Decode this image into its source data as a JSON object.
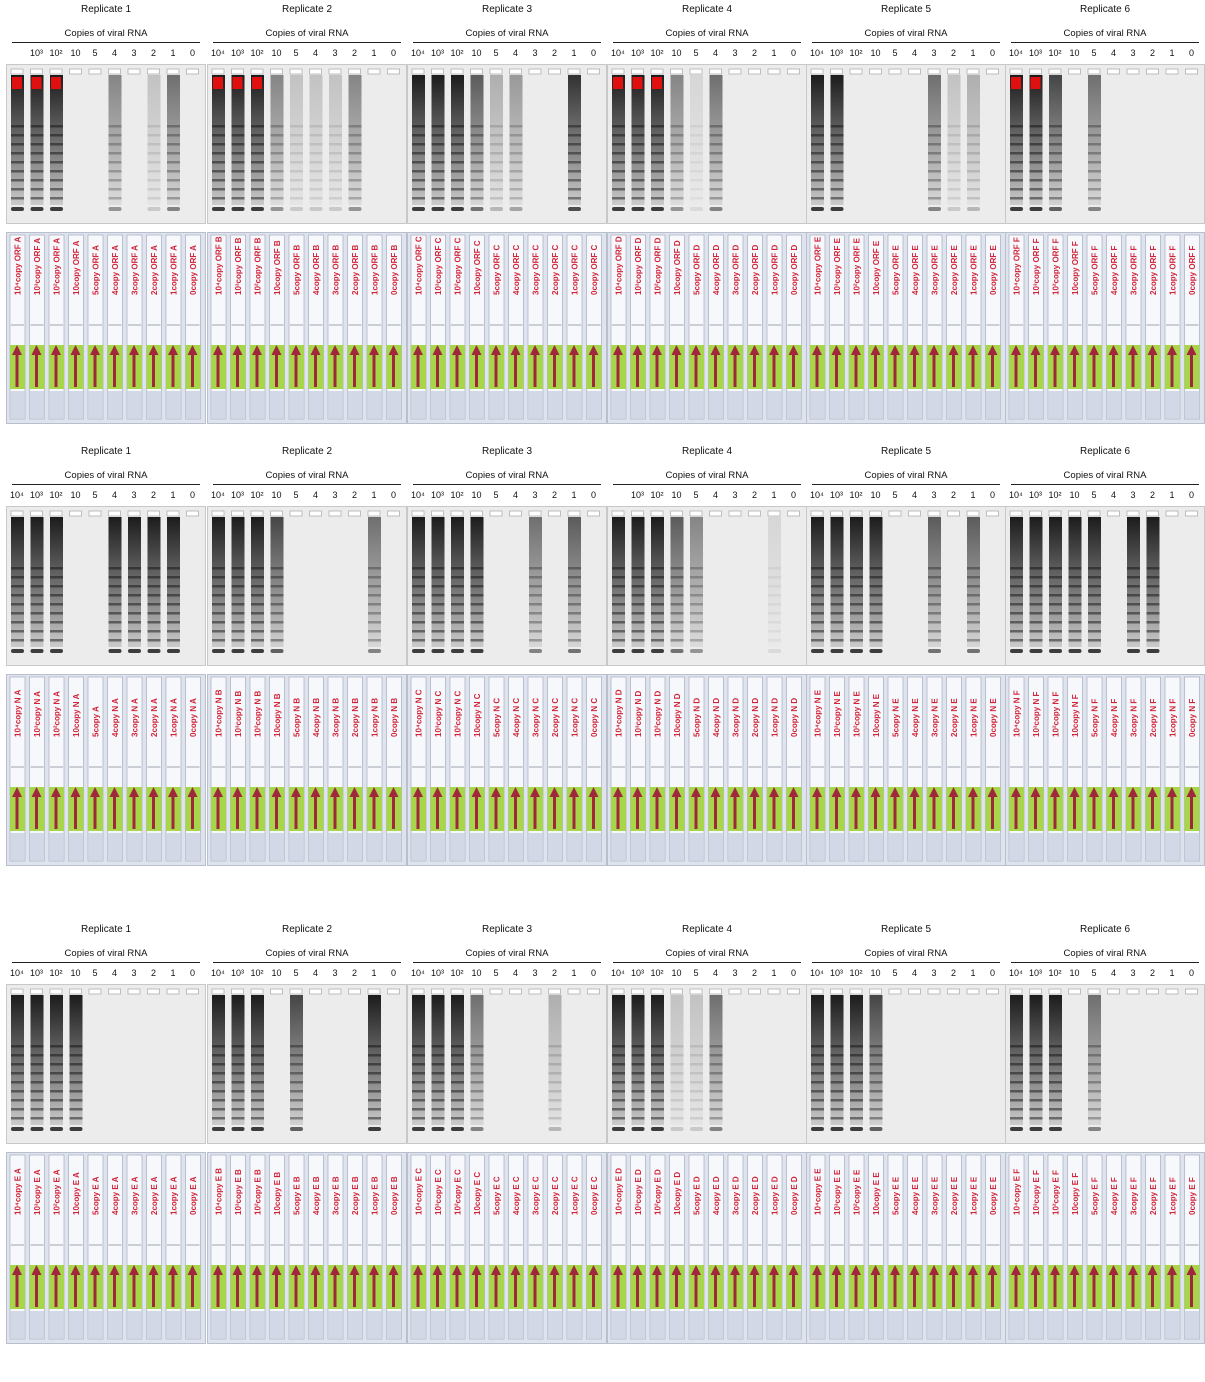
{
  "rows": [
    {
      "replicates": [
        {
          "title": "Replicate 1",
          "copies_label": "Copies of viral RNA",
          "lanes": [
            "",
            "10³",
            "10²",
            "10",
            "5",
            "4",
            "3",
            "2",
            "1",
            "0"
          ],
          "gel_signal": [
            1,
            1,
            1,
            0,
            0,
            0.5,
            0,
            0.2,
            0.6,
            0
          ],
          "strip_labels": [
            "10⁴copy ORF A",
            "10³copy ORF A",
            "10²copy ORF A",
            "10copy ORF A",
            "5copy ORF A",
            "4copy ORF A",
            "3copy ORF A",
            "2copy ORF A",
            "1copy ORF A",
            "0copy ORF A"
          ]
        },
        {
          "title": "Replicate 2",
          "copies_label": "Copies of viral RNA",
          "lanes": [
            "10⁴",
            "10³",
            "10²",
            "10",
            "5",
            "4",
            "3",
            "2",
            "1",
            "0"
          ],
          "gel_signal": [
            1,
            1,
            1,
            0.5,
            0.2,
            0.2,
            0.2,
            0.5,
            0,
            0
          ],
          "strip_labels": [
            "10⁴copy ORF B",
            "10³copy ORF B",
            "10²copy ORF B",
            "10copy ORF B",
            "5copy ORF B",
            "4copy ORF B",
            "3copy ORF B",
            "2copy ORF B",
            "1copy ORF B",
            "0copy ORF B"
          ]
        },
        {
          "title": "Replicate 3",
          "copies_label": "Copies of viral RNA",
          "lanes": [
            "10⁴",
            "10³",
            "10²",
            "10",
            "5",
            "4",
            "3",
            "2",
            "1",
            "0"
          ],
          "gel_signal": [
            1,
            1,
            1,
            0.7,
            0.3,
            0.4,
            0,
            0,
            0.9,
            0
          ],
          "strip_labels": [
            "10⁴copy ORF C",
            "10³copy ORF C",
            "10²copy ORF C",
            "10copy ORF C",
            "5copy ORF C",
            "4copy ORF C",
            "3copy ORF C",
            "2copy ORF C",
            "1copy ORF C",
            "0copy ORF C"
          ]
        },
        {
          "title": "Replicate 4",
          "copies_label": "Copies of viral RNA",
          "lanes": [
            "10⁴",
            "10³",
            "10²",
            "10",
            "5",
            "4",
            "3",
            "2",
            "1",
            "0"
          ],
          "gel_signal": [
            1,
            1,
            1,
            0.5,
            0.1,
            0.6,
            0,
            0,
            0,
            0
          ],
          "strip_labels": [
            "10⁴copy ORF D",
            "10³copy ORF D",
            "10²copy ORF D",
            "10copy ORF D",
            "5copy ORF D",
            "4copy ORF D",
            "3copy ORF D",
            "2copy ORF D",
            "1copy ORF D",
            "0copy ORF D"
          ]
        },
        {
          "title": "Replicate 5",
          "copies_label": "Copies of viral RNA",
          "lanes": [
            "10⁴",
            "10³",
            "10²",
            "10",
            "5",
            "4",
            "3",
            "2",
            "1",
            "0"
          ],
          "gel_signal": [
            1,
            1,
            0,
            0,
            0,
            0,
            0.6,
            0.2,
            0.3,
            0
          ],
          "strip_labels": [
            "10⁴copy ORF E",
            "10³copy ORF E",
            "10²copy ORF E",
            "10copy ORF E",
            "5copy ORF E",
            "4copy ORF E",
            "3copy ORF E",
            "2copy ORF E",
            "1copy ORF E",
            "0copy ORF E"
          ]
        },
        {
          "title": "Replicate 6",
          "copies_label": "Copies of viral RNA",
          "lanes": [
            "10⁴",
            "10³",
            "10²",
            "10",
            "5",
            "4",
            "3",
            "2",
            "1",
            "0"
          ],
          "gel_signal": [
            1,
            1,
            0.8,
            0,
            0.6,
            0,
            0,
            0,
            0,
            0
          ],
          "strip_labels": [
            "10⁴copy ORF F",
            "10³copy ORF F",
            "10²copy ORF F",
            "10copy ORF F",
            "5copy ORF F",
            "4copy ORF F",
            "3copy ORF F",
            "2copy ORF F",
            "1copy ORF F",
            "0copy ORF F"
          ]
        }
      ]
    },
    {
      "replicates": [
        {
          "title": "Replicate 1",
          "copies_label": "Copies of viral RNA",
          "lanes": [
            "10⁴",
            "10³",
            "10²",
            "10",
            "5",
            "4",
            "3",
            "2",
            "1",
            "0"
          ],
          "gel_signal": [
            1,
            1,
            1,
            0,
            0,
            1,
            1,
            1,
            1,
            0
          ],
          "strip_labels": [
            "10⁴copy N A",
            "10³copy N A",
            "10²copy N A",
            "10copy N A",
            "5copy A",
            "4copy N A",
            "3copy N A",
            "2copy N A",
            "1copy N A",
            "0copy N A"
          ]
        },
        {
          "title": "Replicate 2",
          "copies_label": "Copies of viral RNA",
          "lanes": [
            "10⁴",
            "10³",
            "10²",
            "10",
            "5",
            "4",
            "3",
            "2",
            "1",
            "0"
          ],
          "gel_signal": [
            1,
            1,
            1,
            0.8,
            0,
            0,
            0,
            0,
            0.6,
            0
          ],
          "strip_labels": [
            "10⁴copy N B",
            "10³copy N B",
            "10²copy N B",
            "10copy N B",
            "5copy N B",
            "4copy N B",
            "3copy N B",
            "2copy N B",
            "1copy N B",
            "0copy N B"
          ]
        },
        {
          "title": "Replicate 3",
          "copies_label": "Copies of viral RNA",
          "lanes": [
            "10⁴",
            "10³",
            "10²",
            "10",
            "5",
            "4",
            "3",
            "2",
            "1",
            "0"
          ],
          "gel_signal": [
            1,
            1,
            1,
            1,
            0,
            0,
            0.6,
            0,
            0.7,
            0
          ],
          "strip_labels": [
            "10⁴copy N C",
            "10³copy N C",
            "10²copy N C",
            "10copy N C",
            "5copy N C",
            "4copy N C",
            "3copy N C",
            "2copy N C",
            "1copy N C",
            "0copy N C"
          ]
        },
        {
          "title": "Replicate 4",
          "copies_label": "Copies of viral RNA",
          "lanes": [
            "",
            "10³",
            "10²",
            "10",
            "5",
            "4",
            "3",
            "2",
            "1",
            "0"
          ],
          "gel_signal": [
            1,
            1,
            1,
            0.7,
            0.5,
            0,
            0,
            0,
            0.1,
            0
          ],
          "strip_labels": [
            "10⁴copy N D",
            "10³copy N D",
            "10²copy N D",
            "10copy N D",
            "5copy N D",
            "4copy N D",
            "3copy N D",
            "2copy N D",
            "1copy N D",
            "0copy N D"
          ]
        },
        {
          "title": "Replicate 5",
          "copies_label": "Copies of viral RNA",
          "lanes": [
            "10⁴",
            "10³",
            "10²",
            "10",
            "5",
            "4",
            "3",
            "2",
            "1",
            "0"
          ],
          "gel_signal": [
            1,
            1,
            1,
            1,
            0,
            0,
            0.7,
            0,
            0.7,
            0
          ],
          "strip_labels": [
            "10⁴copy N E",
            "10³copy N E",
            "10²copy N E",
            "10copy N E",
            "5copy N E",
            "4copy N E",
            "3copy N E",
            "2copy N E",
            "1copy N E",
            "0copy N E"
          ]
        },
        {
          "title": "Replicate 6",
          "copies_label": "Copies of viral RNA",
          "lanes": [
            "10⁴",
            "10³",
            "10²",
            "10",
            "5",
            "4",
            "3",
            "2",
            "1",
            "0"
          ],
          "gel_signal": [
            1,
            1,
            1,
            1,
            1,
            0,
            1,
            1,
            0,
            0
          ],
          "strip_labels": [
            "10⁴copy N F",
            "10³copy N F",
            "10²copy N F",
            "10copy N F",
            "5copy N F",
            "4copy N F",
            "3copy N F",
            "2copy N F",
            "1copy N F",
            "0copy N F"
          ]
        }
      ]
    },
    {
      "replicates": [
        {
          "title": "Replicate 1",
          "copies_label": "Copies of viral RNA",
          "lanes": [
            "10⁴",
            "10³",
            "10²",
            "10",
            "5",
            "4",
            "3",
            "2",
            "1",
            "0"
          ],
          "gel_signal": [
            1,
            1,
            1,
            1,
            0,
            0,
            0,
            0,
            0,
            0
          ],
          "strip_labels": [
            "10⁴copy E A",
            "10³copy E A",
            "10²copy E A",
            "10copy E A",
            "5copy E A",
            "4copy E A",
            "3copy E A",
            "2copy E A",
            "1copy E A",
            "0copy E A"
          ]
        },
        {
          "title": "Replicate 2",
          "copies_label": "Copies of viral RNA",
          "lanes": [
            "10⁴",
            "10³",
            "10²",
            "10",
            "5",
            "4",
            "3",
            "2",
            "1",
            "0"
          ],
          "gel_signal": [
            1,
            1,
            1,
            0,
            0.8,
            0,
            0,
            0,
            1,
            0
          ],
          "strip_labels": [
            "10⁴copy E B",
            "10³copy E B",
            "10²copy E B",
            "10copy E B",
            "5copy E B",
            "4copy E B",
            "3copy E B",
            "2copy E B",
            "1copy E B",
            "0copy E B"
          ]
        },
        {
          "title": "Replicate 3",
          "copies_label": "Copies of viral RNA",
          "lanes": [
            "10⁴",
            "10³",
            "10²",
            "10",
            "5",
            "4",
            "3",
            "2",
            "1",
            "0"
          ],
          "gel_signal": [
            1,
            1,
            1,
            0.6,
            0,
            0,
            0,
            0.3,
            0,
            0
          ],
          "strip_labels": [
            "10⁴copy E C",
            "10³copy E C",
            "10²copy E C",
            "10copy E C",
            "5copy E C",
            "4copy E C",
            "3copy E C",
            "2copy E C",
            "1copy E C",
            "0copy E C"
          ]
        },
        {
          "title": "Replicate 4",
          "copies_label": "Copies of viral RNA",
          "lanes": [
            "10⁴",
            "10³",
            "10²",
            "10",
            "5",
            "4",
            "3",
            "2",
            "1",
            "0"
          ],
          "gel_signal": [
            1,
            1,
            1,
            0.2,
            0.2,
            0.6,
            0,
            0,
            0,
            0
          ],
          "strip_labels": [
            "10⁴copy E D",
            "10³copy E D",
            "10²copy E D",
            "10copy E D",
            "5copy E D",
            "4copy E D",
            "3copy E D",
            "2copy E D",
            "1copy E D",
            "0copy E D"
          ]
        },
        {
          "title": "Replicate 5",
          "copies_label": "Copies of viral RNA",
          "lanes": [
            "10⁴",
            "10³",
            "10²",
            "10",
            "5",
            "4",
            "3",
            "2",
            "1",
            "0"
          ],
          "gel_signal": [
            1,
            1,
            1,
            0.8,
            0,
            0,
            0,
            0,
            0,
            0
          ],
          "strip_labels": [
            "10⁴copy E E",
            "10³copy E E",
            "10²copy E E",
            "10copy E E",
            "5copy E E",
            "4copy E E",
            "3copy E E",
            "2copy E E",
            "1copy E E",
            "0copy E E"
          ]
        },
        {
          "title": "Replicate 6",
          "copies_label": "Copies of viral RNA",
          "lanes": [
            "10⁴",
            "10³",
            "10²",
            "10",
            "5",
            "4",
            "3",
            "2",
            "1",
            "0"
          ],
          "gel_signal": [
            1,
            1,
            1,
            0,
            0.6,
            0,
            0,
            0,
            0,
            0
          ],
          "strip_labels": [
            "10⁴copy E F",
            "10³copy E F",
            "10²copy E F",
            "10copy E F",
            "5copy E F",
            "4copy E F",
            "3copy E F",
            "2copy E F",
            "1copy E F",
            "0copy E F"
          ]
        }
      ]
    }
  ],
  "colors": {
    "gel_background": "#ececec",
    "band_dark": "#111111",
    "saturation_red": "#e01010",
    "strip_background": "#dfe3ee",
    "strip_white": "#f7f8fb",
    "strip_pad_green": "#a8d64a",
    "arrow_maroon": "#a0283c",
    "label_red": "#d1243a",
    "label_green": "#1e8a55"
  }
}
